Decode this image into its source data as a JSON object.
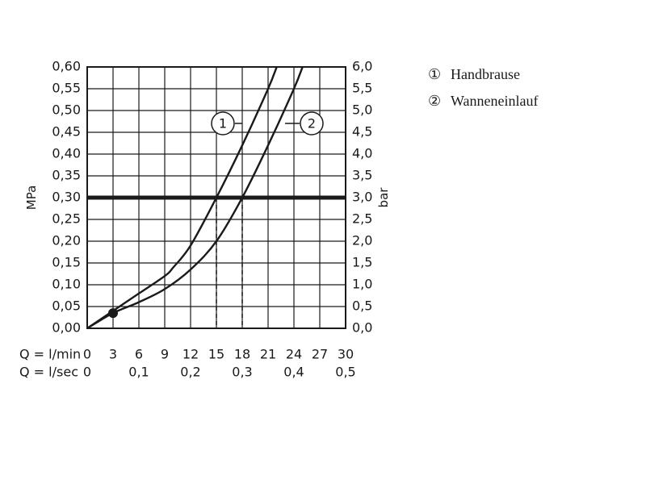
{
  "chart_data": {
    "type": "line",
    "y_left": {
      "label": "MPa",
      "ticks": [
        "0,00",
        "0,05",
        "0,10",
        "0,15",
        "0,20",
        "0,25",
        "0,30",
        "0,35",
        "0,40",
        "0,45",
        "0,50",
        "0,55",
        "0,60"
      ],
      "range": [
        0,
        0.6
      ]
    },
    "y_right": {
      "label": "bar",
      "ticks": [
        "0,0",
        "0,5",
        "1,0",
        "1,5",
        "2,0",
        "2,5",
        "3,0",
        "3,5",
        "4,0",
        "4,5",
        "5,0",
        "5,5",
        "6,0"
      ],
      "range": [
        0,
        6
      ]
    },
    "x_lmin": {
      "label": "Q = l/min",
      "ticks": [
        "0",
        "3",
        "6",
        "9",
        "12",
        "15",
        "18",
        "21",
        "24",
        "27",
        "30"
      ],
      "range": [
        0,
        30
      ]
    },
    "x_lsec": {
      "label": "Q = l/sec",
      "ticks": [
        "0",
        "0,1",
        "0,2",
        "0,3",
        "0,4",
        "0,5"
      ],
      "values": [
        0,
        0.1,
        0.2,
        0.3,
        0.4,
        0.5
      ]
    },
    "grid": true,
    "reference_line": {
      "y": 0.3,
      "style": "thick"
    },
    "series": [
      {
        "id": "1",
        "name": "Handbrause",
        "x": [
          0,
          3,
          6,
          9,
          10,
          12,
          15,
          18,
          21,
          22
        ],
        "y": [
          0,
          0.04,
          0.08,
          0.12,
          0.14,
          0.19,
          0.3,
          0.42,
          0.55,
          0.6
        ]
      },
      {
        "id": "2",
        "name": "Wanneneinlauf",
        "x": [
          0,
          3,
          6,
          9,
          12,
          15,
          18,
          21,
          24,
          25
        ],
        "y": [
          0,
          0.035,
          0.06,
          0.09,
          0.135,
          0.2,
          0.3,
          0.42,
          0.55,
          0.6
        ]
      }
    ],
    "marked_point": {
      "x": 3,
      "y": 0.035
    },
    "dashed_drops": [
      {
        "series": "1",
        "x": 15,
        "y": 0.3
      },
      {
        "series": "2",
        "x": 18,
        "y": 0.3
      }
    ],
    "legend": {
      "placement": "top-right",
      "items": [
        {
          "symbol": "①",
          "label": "Handbrause"
        },
        {
          "symbol": "②",
          "label": "Wanneneinlauf"
        }
      ]
    },
    "curve_markers": [
      {
        "text": "1",
        "series": "1"
      },
      {
        "text": "2",
        "series": "2"
      }
    ]
  }
}
